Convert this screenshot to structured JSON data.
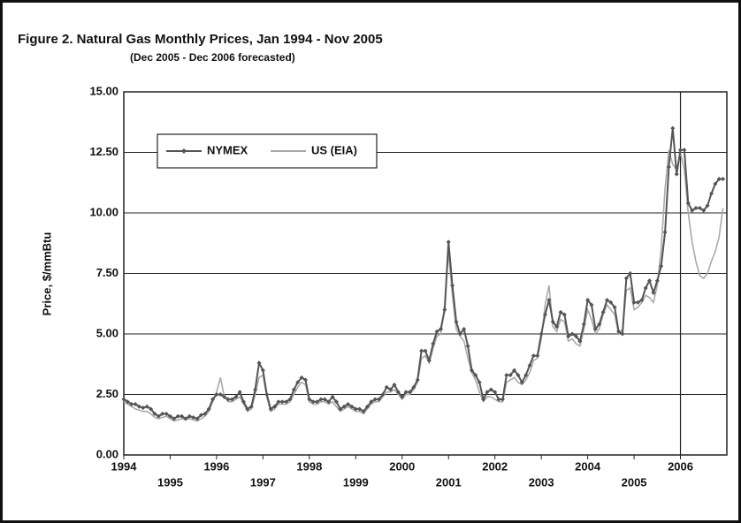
{
  "chart_data": {
    "type": "line",
    "title": "Figure 2.  Natural Gas Monthly Prices, Jan 1994 - Nov 2005",
    "subtitle": "(Dec 2005 - Dec 2006 forecasted)",
    "y_label": "Price, $/mmBtu",
    "xlim": [
      1994,
      2007
    ],
    "xticks": [
      1994,
      1995,
      1996,
      1997,
      1998,
      1999,
      2000,
      2001,
      2002,
      2003,
      2004,
      2005,
      2006
    ],
    "ylim": [
      0,
      15
    ],
    "yticks": [
      {
        "value": 0,
        "label": "0.00"
      },
      {
        "value": 2.5,
        "label": "2.50"
      },
      {
        "value": 5,
        "label": "5.00"
      },
      {
        "value": 7.5,
        "label": "7.50"
      },
      {
        "value": 10,
        "label": "10.00"
      },
      {
        "value": 12.5,
        "label": "12.50"
      },
      {
        "value": 15,
        "label": "15.00"
      }
    ],
    "grid": true,
    "forecast_line": 2006,
    "legend": "top-left",
    "x": [
      1994.0,
      1994.083,
      1994.167,
      1994.25,
      1994.333,
      1994.417,
      1994.5,
      1994.583,
      1994.667,
      1994.75,
      1994.833,
      1994.917,
      1995.0,
      1995.083,
      1995.167,
      1995.25,
      1995.333,
      1995.417,
      1995.5,
      1995.583,
      1995.667,
      1995.75,
      1995.833,
      1995.917,
      1996.0,
      1996.083,
      1996.167,
      1996.25,
      1996.333,
      1996.417,
      1996.5,
      1996.583,
      1996.667,
      1996.75,
      1996.833,
      1996.917,
      1997.0,
      1997.083,
      1997.167,
      1997.25,
      1997.333,
      1997.417,
      1997.5,
      1997.583,
      1997.667,
      1997.75,
      1997.833,
      1997.917,
      1998.0,
      1998.083,
      1998.167,
      1998.25,
      1998.333,
      1998.417,
      1998.5,
      1998.583,
      1998.667,
      1998.75,
      1998.833,
      1998.917,
      1999.0,
      1999.083,
      1999.167,
      1999.25,
      1999.333,
      1999.417,
      1999.5,
      1999.583,
      1999.667,
      1999.75,
      1999.833,
      1999.917,
      2000.0,
      2000.083,
      2000.167,
      2000.25,
      2000.333,
      2000.417,
      2000.5,
      2000.583,
      2000.667,
      2000.75,
      2000.833,
      2000.917,
      2001.0,
      2001.083,
      2001.167,
      2001.25,
      2001.333,
      2001.417,
      2001.5,
      2001.583,
      2001.667,
      2001.75,
      2001.833,
      2001.917,
      2002.0,
      2002.083,
      2002.167,
      2002.25,
      2002.333,
      2002.417,
      2002.5,
      2002.583,
      2002.667,
      2002.75,
      2002.833,
      2002.917,
      2003.0,
      2003.083,
      2003.167,
      2003.25,
      2003.333,
      2003.417,
      2003.5,
      2003.583,
      2003.667,
      2003.75,
      2003.833,
      2003.917,
      2004.0,
      2004.083,
      2004.167,
      2004.25,
      2004.333,
      2004.417,
      2004.5,
      2004.583,
      2004.667,
      2004.75,
      2004.833,
      2004.917,
      2005.0,
      2005.083,
      2005.167,
      2005.25,
      2005.333,
      2005.417,
      2005.5,
      2005.583,
      2005.667,
      2005.75,
      2005.833,
      2005.917,
      2006.0,
      2006.083,
      2006.167,
      2006.25,
      2006.333,
      2006.417,
      2006.5,
      2006.583,
      2006.667,
      2006.75,
      2006.833,
      2006.917
    ],
    "series": [
      {
        "name": "NYMEX",
        "color": "#555555",
        "marker": true,
        "values": [
          2.3,
          2.2,
          2.1,
          2.1,
          2.0,
          1.95,
          2.0,
          1.9,
          1.7,
          1.6,
          1.7,
          1.7,
          1.6,
          1.5,
          1.6,
          1.6,
          1.5,
          1.6,
          1.55,
          1.5,
          1.65,
          1.7,
          1.9,
          2.3,
          2.5,
          2.5,
          2.4,
          2.3,
          2.3,
          2.4,
          2.6,
          2.2,
          1.9,
          2.0,
          2.7,
          3.8,
          3.5,
          2.5,
          1.9,
          2.0,
          2.2,
          2.2,
          2.2,
          2.3,
          2.7,
          3.0,
          3.2,
          3.1,
          2.3,
          2.2,
          2.2,
          2.3,
          2.3,
          2.2,
          2.4,
          2.2,
          1.9,
          2.0,
          2.1,
          2.0,
          1.9,
          1.9,
          1.8,
          2.0,
          2.2,
          2.3,
          2.3,
          2.5,
          2.8,
          2.7,
          2.9,
          2.6,
          2.4,
          2.6,
          2.6,
          2.8,
          3.1,
          4.3,
          4.3,
          3.9,
          4.6,
          5.1,
          5.2,
          6.0,
          8.8,
          7.0,
          5.5,
          5.0,
          5.2,
          4.5,
          3.5,
          3.3,
          3.0,
          2.3,
          2.6,
          2.7,
          2.6,
          2.3,
          2.3,
          3.3,
          3.3,
          3.5,
          3.3,
          3.0,
          3.3,
          3.7,
          4.1,
          4.1,
          5.0,
          5.8,
          6.4,
          5.5,
          5.3,
          5.9,
          5.8,
          4.9,
          5.0,
          4.9,
          4.7,
          5.4,
          6.4,
          6.2,
          5.2,
          5.4,
          5.9,
          6.4,
          6.3,
          6.1,
          5.1,
          5.0,
          7.3,
          7.5,
          6.3,
          6.3,
          6.4,
          6.9,
          7.2,
          6.7,
          7.2,
          7.8,
          9.2,
          11.9,
          13.5,
          11.6,
          12.6,
          12.6,
          10.4,
          10.1,
          10.2,
          10.2,
          10.1,
          10.3,
          10.8,
          11.2,
          11.4,
          11.4
        ]
      },
      {
        "name": "US (EIA)",
        "color": "#aaaaaa",
        "marker": false,
        "values": [
          2.2,
          2.1,
          2.0,
          1.9,
          1.85,
          1.8,
          1.8,
          1.7,
          1.55,
          1.5,
          1.55,
          1.6,
          1.5,
          1.4,
          1.45,
          1.5,
          1.45,
          1.5,
          1.45,
          1.4,
          1.5,
          1.6,
          1.8,
          2.2,
          2.6,
          3.2,
          2.4,
          2.2,
          2.2,
          2.3,
          2.4,
          2.1,
          1.8,
          1.9,
          2.5,
          3.2,
          3.3,
          2.4,
          1.8,
          1.9,
          2.1,
          2.1,
          2.1,
          2.2,
          2.5,
          2.8,
          3.0,
          2.9,
          2.2,
          2.1,
          2.1,
          2.2,
          2.2,
          2.1,
          2.2,
          2.0,
          1.8,
          1.9,
          2.0,
          1.9,
          1.8,
          1.8,
          1.7,
          1.9,
          2.1,
          2.2,
          2.2,
          2.4,
          2.6,
          2.6,
          2.7,
          2.5,
          2.3,
          2.5,
          2.5,
          2.7,
          3.0,
          4.0,
          4.1,
          3.8,
          4.4,
          4.9,
          5.0,
          6.2,
          8.4,
          6.6,
          5.2,
          4.9,
          4.7,
          4.0,
          3.4,
          3.1,
          2.6,
          2.2,
          2.4,
          2.4,
          2.3,
          2.2,
          2.2,
          3.0,
          3.1,
          3.2,
          3.0,
          2.9,
          3.1,
          3.4,
          3.9,
          4.0,
          4.8,
          6.2,
          7.0,
          5.3,
          5.1,
          5.6,
          5.5,
          4.7,
          4.8,
          4.6,
          4.5,
          5.2,
          6.0,
          5.6,
          5.0,
          5.2,
          5.8,
          6.2,
          6.0,
          5.8,
          5.0,
          5.2,
          6.8,
          6.9,
          6.0,
          6.1,
          6.3,
          6.6,
          6.5,
          6.3,
          7.0,
          8.5,
          11.0,
          12.6,
          12.0,
          11.8,
          12.5,
          11.8,
          10.0,
          8.8,
          8.0,
          7.4,
          7.3,
          7.5,
          8.0,
          8.4,
          9.0,
          10.2
        ]
      }
    ]
  }
}
